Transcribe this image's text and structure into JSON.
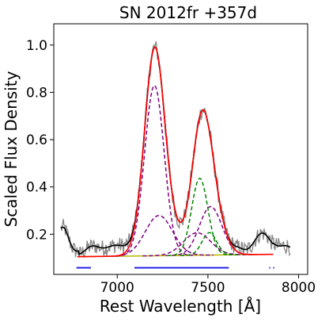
{
  "chart_data": {
    "type": "line",
    "title": "SN 2012fr  +357d",
    "xlabel": "Rest Wavelength [Å]",
    "ylabel": "Scaled Flux Density",
    "xlim": [
      6650,
      8050
    ],
    "ylim": [
      0.03,
      1.09
    ],
    "xticks": [
      7000,
      7500,
      8000
    ],
    "yticks": [
      0.2,
      0.4,
      0.6,
      0.8,
      1.0
    ],
    "xtick_labels": [
      "7000",
      "7500",
      "8000"
    ],
    "ytick_labels": [
      "0.2",
      "0.4",
      "0.6",
      "0.8",
      "1.0"
    ],
    "grid": false,
    "legend": false,
    "continuum": {
      "x": [
        6790,
        7860
      ],
      "y": [
        0.105,
        0.115
      ]
    },
    "components": [
      {
        "color": "#800080",
        "center": 7205,
        "sigma": 54,
        "amplitude": 0.72
      },
      {
        "color": "#800080",
        "center": 7230,
        "sigma": 75,
        "amplitude": 0.17
      },
      {
        "color": "#800080",
        "center": 7515,
        "sigma": 62,
        "amplitude": 0.205
      },
      {
        "color": "#800080",
        "center": 7440,
        "sigma": 75,
        "amplitude": 0.095
      },
      {
        "color": "#008000",
        "center": 7455,
        "sigma": 45,
        "amplitude": 0.325
      },
      {
        "color": "#008000",
        "center": 7508,
        "sigma": 40,
        "amplitude": 0.095
      }
    ],
    "fit_range": [
      6780,
      7860
    ],
    "fit_windows": [
      {
        "x": [
          6775,
          6855
        ],
        "y": 0.058
      },
      {
        "x": [
          7095,
          7615
        ],
        "y": 0.058
      },
      {
        "x": [
          7838,
          7844
        ],
        "y": 0.058
      },
      {
        "x": [
          7860,
          7866
        ],
        "y": 0.058
      }
    ],
    "colors": {
      "data": "#888888",
      "smoothed": "#000000",
      "fit": "#ff0000",
      "continuum": "#b8b800",
      "fit_window": "#2222ee"
    }
  }
}
